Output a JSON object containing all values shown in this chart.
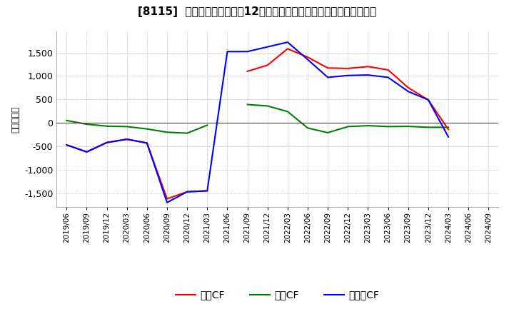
{
  "title": "[8115]  キャッシュフローの12か月移動合計の対前年同期増減額の推移",
  "ylabel": "（百万円）",
  "x_labels": [
    "2019/06",
    "2019/09",
    "2019/12",
    "2020/03",
    "2020/06",
    "2020/09",
    "2020/12",
    "2021/03",
    "2021/06",
    "2021/09",
    "2021/12",
    "2022/03",
    "2022/06",
    "2022/09",
    "2022/12",
    "2023/03",
    "2023/06",
    "2023/09",
    "2023/12",
    "2024/03",
    "2024/06",
    "2024/09"
  ],
  "operating_cf": [
    -470,
    -620,
    -420,
    -350,
    -430,
    -1620,
    -1470,
    -1450,
    null,
    1100,
    1230,
    1580,
    1400,
    1170,
    1160,
    1200,
    1130,
    750,
    490,
    -140,
    null,
    null
  ],
  "investing_cf": [
    50,
    -30,
    -70,
    -80,
    -130,
    -200,
    -220,
    -50,
    null,
    390,
    360,
    240,
    -110,
    -210,
    -80,
    -60,
    -80,
    -75,
    -95,
    -95,
    null,
    null
  ],
  "free_cf": [
    -470,
    -620,
    -420,
    -350,
    -430,
    -1700,
    -1470,
    -1450,
    1520,
    1520,
    1620,
    1720,
    1350,
    970,
    1010,
    1020,
    970,
    670,
    490,
    -300,
    null,
    null
  ],
  "colors": {
    "operating": "#ff0000",
    "investing": "#008000",
    "free": "#0000ff"
  },
  "ylim": [
    -1800,
    1950
  ],
  "yticks": [
    -1500,
    -1000,
    -500,
    0,
    500,
    1000,
    1500
  ],
  "background_color": "#ffffff",
  "grid_color": "#999999",
  "title_fontsize": 11,
  "legend_labels": [
    "営業CF",
    "投資CF",
    "フリーCF"
  ]
}
